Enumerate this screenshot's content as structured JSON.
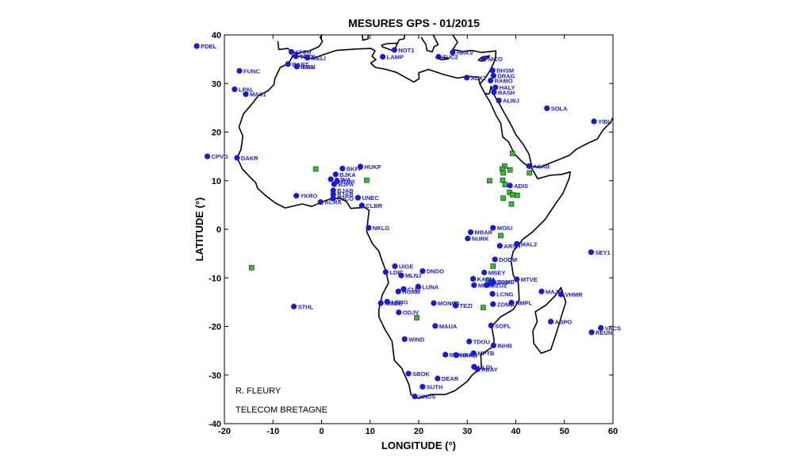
{
  "title": "MESURES GPS - 01/2015",
  "xlabel": "LONGITUDE (°)",
  "ylabel": "LATITUDE (°)",
  "notes": [
    "R. FLEURY",
    "TELECOM BRETAGNE"
  ],
  "colors": {
    "station": "#1a1ad6",
    "green": "#2ec02e",
    "coast": "#000000"
  },
  "chart_data": {
    "type": "scatter",
    "xlim": [
      -20,
      60
    ],
    "ylim": [
      -40,
      40
    ],
    "xticks": [
      -20,
      -10,
      0,
      10,
      20,
      30,
      40,
      50,
      60
    ],
    "yticks": [
      40,
      30,
      20,
      10,
      0,
      -10,
      -20,
      -30,
      -40
    ],
    "stations": [
      {
        "name": "PDEL",
        "lon": -25.7,
        "lat": 37.7
      },
      {
        "name": "FUNC",
        "lon": -16.9,
        "lat": 32.6
      },
      {
        "name": "LPAL",
        "lon": -17.9,
        "lat": 28.8
      },
      {
        "name": "MAS1",
        "lon": -15.6,
        "lat": 27.8
      },
      {
        "name": "CPVG",
        "lon": -23.5,
        "lat": 15.0
      },
      {
        "name": "DAKR",
        "lon": -17.4,
        "lat": 14.7
      },
      {
        "name": "STHL",
        "lon": -5.7,
        "lat": -15.9
      },
      {
        "name": "SFER",
        "lon": -6.2,
        "lat": 36.5
      },
      {
        "name": "TETN",
        "lon": -5.3,
        "lat": 35.6
      },
      {
        "name": "RABT",
        "lon": -6.9,
        "lat": 34.0
      },
      {
        "name": "MELI",
        "lon": -2.9,
        "lat": 35.3
      },
      {
        "name": "ISGN",
        "lon": -5.1,
        "lat": 33.5
      },
      {
        "name": "IFR1",
        "lon": -5.1,
        "lat": 33.5
      },
      {
        "name": "NOT1",
        "lon": 15.0,
        "lat": 36.9
      },
      {
        "name": "LAMP",
        "lon": 12.6,
        "lat": 35.5
      },
      {
        "name": "TUC2",
        "lon": 24.1,
        "lat": 35.5
      },
      {
        "name": "HRKV",
        "lon": 27.0,
        "lat": 36.4
      },
      {
        "name": "NICO",
        "lon": 33.4,
        "lat": 35.1
      },
      {
        "name": "ALX2",
        "lon": 29.9,
        "lat": 31.2
      },
      {
        "name": "BHSM",
        "lon": 35.2,
        "lat": 32.7
      },
      {
        "name": "DRAG",
        "lon": 35.4,
        "lat": 31.6
      },
      {
        "name": "RAMO",
        "lon": 34.8,
        "lat": 30.6
      },
      {
        "name": "HALY",
        "lon": 35.8,
        "lat": 29.2
      },
      {
        "name": "RASH",
        "lon": 35.5,
        "lat": 28.2
      },
      {
        "name": "ALWJ",
        "lon": 36.5,
        "lat": 26.5
      },
      {
        "name": "SOLA",
        "lon": 46.4,
        "lat": 24.9
      },
      {
        "name": "YIBL",
        "lon": 56.1,
        "lat": 22.2
      },
      {
        "name": "BKFP",
        "lon": 4.3,
        "lat": 12.5
      },
      {
        "name": "BJKA",
        "lon": 2.9,
        "lat": 11.3
      },
      {
        "name": "BJNA",
        "lon": 1.9,
        "lat": 10.3
      },
      {
        "name": "BJNI",
        "lon": 3.2,
        "lat": 9.9
      },
      {
        "name": "BJPA",
        "lon": 2.6,
        "lat": 9.3
      },
      {
        "name": "BJAB",
        "lon": 2.4,
        "lat": 8.0
      },
      {
        "name": "BJCO",
        "lon": 2.4,
        "lat": 6.4
      },
      {
        "name": "BJAB",
        "lon": 2.4,
        "lat": 7.2
      },
      {
        "name": "HUKP",
        "lon": 8.0,
        "lat": 12.9
      },
      {
        "name": "YKRO",
        "lon": -5.2,
        "lat": 6.9
      },
      {
        "name": "ACRA",
        "lon": -0.2,
        "lat": 5.6
      },
      {
        "name": "UNEC",
        "lon": 7.5,
        "lat": 6.5
      },
      {
        "name": "CLBR",
        "lon": 8.3,
        "lat": 4.9
      },
      {
        "name": "NKLG",
        "lon": 9.7,
        "lat": 0.3
      },
      {
        "name": "ASAB",
        "lon": 42.7,
        "lat": 13.0
      },
      {
        "name": "ADIS",
        "lon": 38.8,
        "lat": 9.0
      },
      {
        "name": "MOIU",
        "lon": 35.3,
        "lat": 0.3
      },
      {
        "name": "MBAR",
        "lon": 30.7,
        "lat": -0.6
      },
      {
        "name": "NURK",
        "lon": 30.1,
        "lat": -1.9
      },
      {
        "name": "ARSH",
        "lon": 36.7,
        "lat": -3.4
      },
      {
        "name": "MAL2",
        "lon": 40.2,
        "lat": -3.0
      },
      {
        "name": "SEY1",
        "lon": 55.5,
        "lat": -4.7
      },
      {
        "name": "DODM",
        "lon": 35.7,
        "lat": -6.2
      },
      {
        "name": "UIGE",
        "lon": 15.1,
        "lat": -7.6
      },
      {
        "name": "LDIC",
        "lon": 13.2,
        "lat": -8.8
      },
      {
        "name": "DNDO",
        "lon": 20.8,
        "lat": -8.6
      },
      {
        "name": "MLNJ",
        "lon": 16.4,
        "lat": -9.5
      },
      {
        "name": "MBEY",
        "lon": 33.5,
        "lat": -8.9
      },
      {
        "name": "KASM",
        "lon": 31.2,
        "lat": -10.2
      },
      {
        "name": "MPIK",
        "lon": 31.4,
        "lat": -11.5
      },
      {
        "name": "CHIP",
        "lon": 34.9,
        "lat": -11.0
      },
      {
        "name": "MZUZ",
        "lon": 34.0,
        "lat": -11.5
      },
      {
        "name": "ZOMB",
        "lon": 35.3,
        "lat": -10.8
      },
      {
        "name": "MTVE",
        "lon": 40.2,
        "lat": -10.3
      },
      {
        "name": "LUNA",
        "lon": 19.9,
        "lat": -11.8
      },
      {
        "name": "CUIT",
        "lon": 16.9,
        "lat": -12.3
      },
      {
        "name": "HUAM",
        "lon": 15.8,
        "lat": -12.8
      },
      {
        "name": "LCNG",
        "lon": 35.2,
        "lat": -13.3
      },
      {
        "name": "NMBE",
        "lon": 12.2,
        "lat": -15.2
      },
      {
        "name": "LBNG",
        "lon": 13.5,
        "lat": -14.9
      },
      {
        "name": "MONG",
        "lon": 23.1,
        "lat": -15.2
      },
      {
        "name": "TEZI",
        "lon": 27.6,
        "lat": -15.7
      },
      {
        "name": "ZOMB",
        "lon": 35.3,
        "lat": -15.4
      },
      {
        "name": "NMPL",
        "lon": 39.1,
        "lat": -15.1
      },
      {
        "name": "MAJB",
        "lon": 45.3,
        "lat": -12.8
      },
      {
        "name": "VHMR",
        "lon": 49.3,
        "lat": -13.4
      },
      {
        "name": "ODJV",
        "lon": 15.9,
        "lat": -17.1
      },
      {
        "name": "MAUA",
        "lon": 23.4,
        "lat": -19.9
      },
      {
        "name": "SOFL",
        "lon": 34.9,
        "lat": -19.8
      },
      {
        "name": "ABPO",
        "lon": 47.2,
        "lat": -19.0
      },
      {
        "name": "VACS",
        "lon": 57.5,
        "lat": -20.3
      },
      {
        "name": "REUN",
        "lon": 55.6,
        "lat": -21.2
      },
      {
        "name": "WIND",
        "lon": 17.1,
        "lat": -22.6
      },
      {
        "name": "TDOU",
        "lon": 30.4,
        "lat": -23.1
      },
      {
        "name": "INHB",
        "lon": 35.4,
        "lat": -23.9
      },
      {
        "name": "MFKG",
        "lon": 25.5,
        "lat": -25.8
      },
      {
        "name": "HRAO",
        "lon": 27.7,
        "lat": -25.9
      },
      {
        "name": "HARB",
        "lon": 27.7,
        "lat": -25.9
      },
      {
        "name": "MPTB",
        "lon": 31.3,
        "lat": -25.5
      },
      {
        "name": "ULDI",
        "lon": 31.4,
        "lat": -28.3
      },
      {
        "name": "RBAY",
        "lon": 32.1,
        "lat": -28.8
      },
      {
        "name": "SBOK",
        "lon": 17.9,
        "lat": -29.7
      },
      {
        "name": "DEAR",
        "lon": 23.9,
        "lat": -30.7
      },
      {
        "name": "SUTH",
        "lon": 20.8,
        "lat": -32.4
      },
      {
        "name": "HNUS",
        "lon": 19.2,
        "lat": -34.4
      }
    ],
    "green_markers": [
      {
        "lon": -1.2,
        "lat": 12.4
      },
      {
        "lon": 9.3,
        "lat": 10.1
      },
      {
        "lon": -14.4,
        "lat": -7.9
      },
      {
        "lon": 39.3,
        "lat": 15.6
      },
      {
        "lon": 37.7,
        "lat": 13.0
      },
      {
        "lon": 37.2,
        "lat": 12.4
      },
      {
        "lon": 38.8,
        "lat": 12.2
      },
      {
        "lon": 42.8,
        "lat": 11.6
      },
      {
        "lon": 37.4,
        "lat": 11.6
      },
      {
        "lon": 34.6,
        "lat": 10.0
      },
      {
        "lon": 37.3,
        "lat": 10.1
      },
      {
        "lon": 37.8,
        "lat": 9.2
      },
      {
        "lon": 38.7,
        "lat": 7.6
      },
      {
        "lon": 37.4,
        "lat": 6.4
      },
      {
        "lon": 39.3,
        "lat": 7.1
      },
      {
        "lon": 40.3,
        "lat": 7.0
      },
      {
        "lon": 39.1,
        "lat": 5.2
      },
      {
        "lon": 36.9,
        "lat": -1.3
      },
      {
        "lon": 35.3,
        "lat": -7.6
      },
      {
        "lon": 34.3,
        "lat": -10.5
      },
      {
        "lon": 34.9,
        "lat": -11.1
      },
      {
        "lon": 27.7,
        "lat": -15.4
      },
      {
        "lon": 33.3,
        "lat": -16.1
      },
      {
        "lon": 19.6,
        "lat": -18.2
      }
    ]
  }
}
